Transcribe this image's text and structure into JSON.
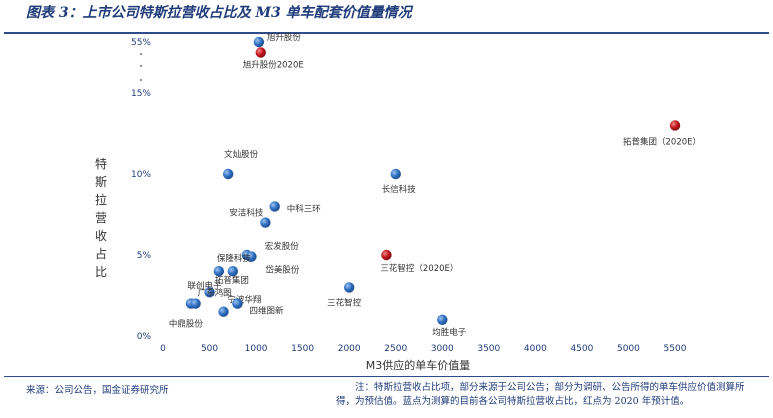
{
  "title": "图表 3：上市公司特斯拉营收占比及 M3 单车配套价值量情况",
  "source": "来源：公司公告，国金证券研究所",
  "note": "注：特斯拉营收占比项，部分来源于公司公告；部分为调研、公告所得的单车供应价值测算所得，为预估值。蓝点为测算的目前各公司特斯拉营收占比，红点为 2020 年预计值。",
  "chart_data": {
    "type": "scatter",
    "title": "图表 3：上市公司特斯拉营收占比及 M3 单车配套价值量情况",
    "xlabel": "M3供应的单车价值量",
    "ylabel": "特斯拉营收占比",
    "xlim": [
      0,
      5500
    ],
    "xticks": [
      "0",
      "500",
      "1000",
      "1500",
      "2000",
      "2500",
      "3000",
      "3500",
      "4000",
      "4500",
      "5000",
      "5500"
    ],
    "yticks": [
      "0%",
      "5%",
      "10%",
      "15%",
      "55%"
    ],
    "y_axis_note": "broken axis between 15% and 55%",
    "grid": false,
    "colors": {
      "blue": "#2f6fc1",
      "red": "#c0141c"
    },
    "points": [
      {
        "label": "旭升股份",
        "x": 1030,
        "y": 55,
        "color": "blue"
      },
      {
        "label": "旭升股份2020E",
        "x": 1050,
        "y": 53.5,
        "color": "red"
      },
      {
        "label": "拓普集团（2020E）",
        "x": 5500,
        "y": 13,
        "color": "red"
      },
      {
        "label": "文灿股份",
        "x": 700,
        "y": 10,
        "color": "blue"
      },
      {
        "label": "长信科技",
        "x": 2500,
        "y": 10,
        "color": "blue"
      },
      {
        "label": "中科三环",
        "x": 1200,
        "y": 8,
        "color": "blue"
      },
      {
        "label": "安洁科技",
        "x": 1100,
        "y": 7,
        "color": "blue"
      },
      {
        "label": "宏发股份",
        "x": 900,
        "y": 5,
        "color": "blue"
      },
      {
        "label": "岱美股份",
        "x": 950,
        "y": 4.9,
        "color": "blue"
      },
      {
        "label": "三花智控（2020E）",
        "x": 2400,
        "y": 5,
        "color": "red"
      },
      {
        "label": "保隆科技",
        "x": 600,
        "y": 4,
        "color": "blue"
      },
      {
        "label": "拓普集团",
        "x": 750,
        "y": 4,
        "color": "blue"
      },
      {
        "label": "三花智控",
        "x": 2000,
        "y": 3,
        "color": "blue"
      },
      {
        "label": "联创电子",
        "x": 500,
        "y": 2.7,
        "color": "blue"
      },
      {
        "label": "宁波华翔",
        "x": 800,
        "y": 2,
        "color": "blue"
      },
      {
        "label": "四维图新",
        "x": 800,
        "y": 2,
        "color": "blue"
      },
      {
        "label": "中鼎股份",
        "x": 300,
        "y": 2,
        "color": "blue"
      },
      {
        "label": "广东鸿图",
        "x": 350,
        "y": 2,
        "color": "blue"
      },
      {
        "label": "",
        "x": 650,
        "y": 1.5,
        "color": "blue"
      },
      {
        "label": "均胜电子",
        "x": 3000,
        "y": 1,
        "color": "blue"
      }
    ]
  }
}
